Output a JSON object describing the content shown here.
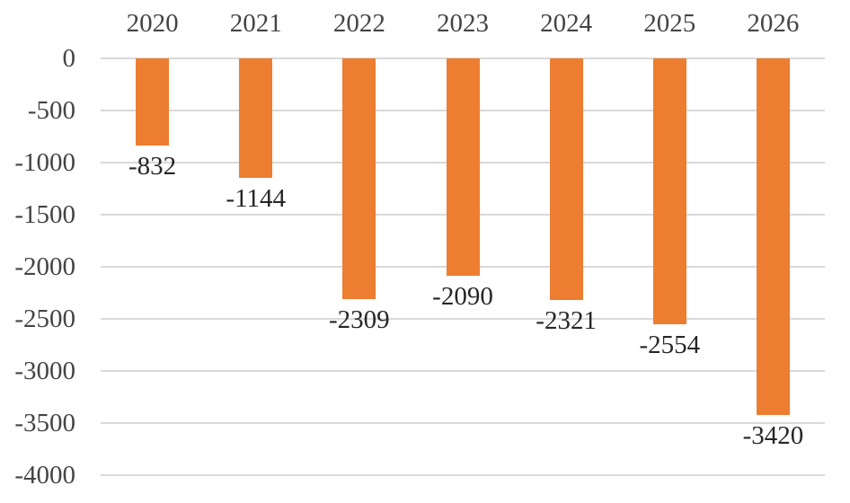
{
  "chart_data": {
    "type": "bar",
    "orientation": "vertical",
    "categories": [
      "2020",
      "2021",
      "2022",
      "2023",
      "2024",
      "2025",
      "2026"
    ],
    "values": [
      -832,
      -1144,
      -2309,
      -2090,
      -2321,
      -2554,
      -3420
    ],
    "data_labels": [
      "-832",
      "-1144",
      "-2309",
      "-2090",
      "-2321",
      "-2554",
      "-3420"
    ],
    "title": "",
    "xlabel": "",
    "ylabel": "",
    "ylim": [
      -4000,
      0
    ],
    "ytick_step": 500,
    "yticks": [
      0,
      -500,
      -1000,
      -1500,
      -2000,
      -2500,
      -3000,
      -3500,
      -4000
    ],
    "ytick_labels": [
      "0",
      "-500",
      "-1000",
      "-1500",
      "-2000",
      "-2500",
      "-3000",
      "-3500",
      "-4000"
    ],
    "grid": true,
    "legend": false,
    "category_label_position": "top",
    "data_label_position": "below-bar-end",
    "colors": {
      "bar": "#ED7D31",
      "gridline": "#D9D9D9",
      "axis_text": "#444444",
      "data_label_text": "#262626",
      "background": "#FFFFFF"
    }
  }
}
